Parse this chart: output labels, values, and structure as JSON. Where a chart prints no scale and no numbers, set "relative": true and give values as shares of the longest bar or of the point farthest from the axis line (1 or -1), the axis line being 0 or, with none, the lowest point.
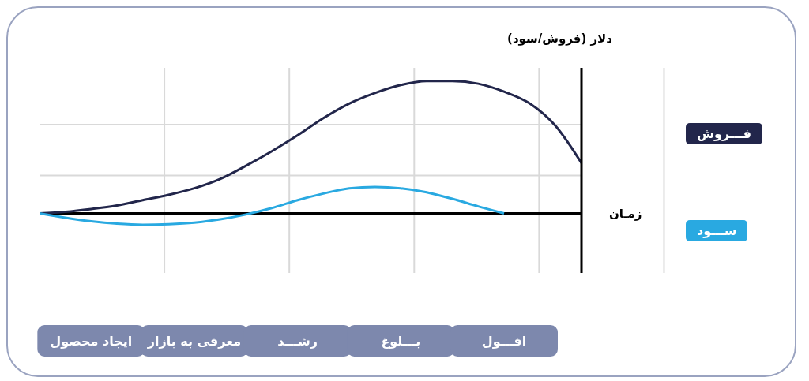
{
  "chart_data": {
    "type": "line",
    "relative": true,
    "ylabel": "(فروش/سود) دلار",
    "xlabel": "زمـان",
    "categories": [
      null,
      null,
      "ایجاد محصول",
      null,
      null,
      null,
      "معرفی به بازار",
      null,
      null,
      null,
      "رشـــد",
      null,
      null,
      null,
      "بـــلوغ",
      null,
      null,
      null,
      "افـــول",
      null,
      null,
      null
    ],
    "series": [
      {
        "name": "فـــروش",
        "color": "#22264b",
        "values": [
          0,
          0.012,
          0.033,
          0.06,
          0.1,
          0.14,
          0.19,
          0.26,
          0.36,
          0.47,
          0.59,
          0.72,
          0.83,
          0.91,
          0.97,
          1,
          1,
          0.98,
          0.92,
          0.83,
          0.66,
          0.38
        ]
      },
      {
        "name": "ســـود",
        "color": "#29a9e1",
        "values": [
          0,
          -0.033,
          -0.06,
          -0.078,
          -0.086,
          -0.082,
          -0.07,
          -0.045,
          -0.008,
          0.04,
          0.1,
          0.15,
          0.19,
          0.2,
          0.19,
          0.16,
          0.11,
          0.053,
          0,
          null,
          null,
          null
        ]
      }
    ],
    "grid": true,
    "legend": "right",
    "marker": "none",
    "line_style": "solid"
  }
}
